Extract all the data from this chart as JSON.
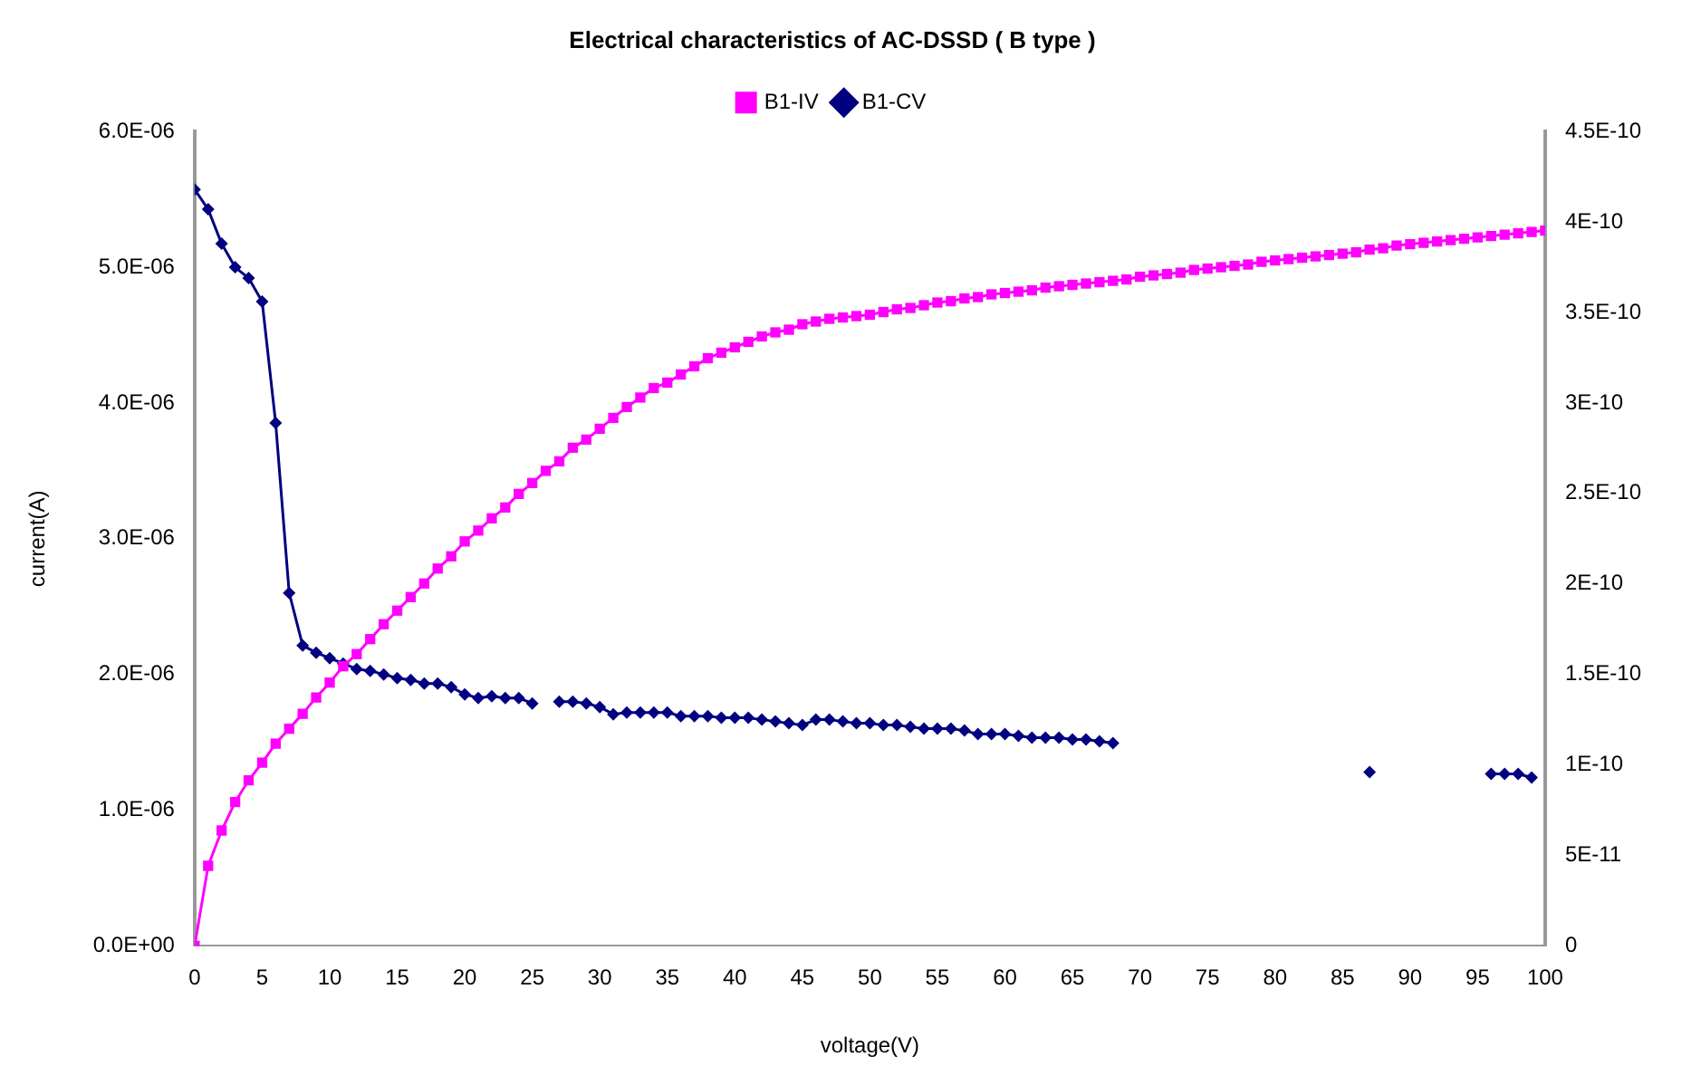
{
  "chart_data": {
    "type": "line",
    "title": "Electrical characteristics of AC-DSSD ( B type )",
    "xlabel": "voltage(V)",
    "ylabel": "current(A)",
    "x": [
      0,
      1,
      2,
      3,
      4,
      5,
      6,
      7,
      8,
      9,
      10,
      11,
      12,
      13,
      14,
      15,
      16,
      17,
      18,
      19,
      20,
      21,
      22,
      23,
      24,
      25,
      26,
      27,
      28,
      29,
      30,
      31,
      32,
      33,
      34,
      35,
      36,
      37,
      38,
      39,
      40,
      41,
      42,
      43,
      44,
      45,
      46,
      47,
      48,
      49,
      50,
      51,
      52,
      53,
      54,
      55,
      56,
      57,
      58,
      59,
      60,
      61,
      62,
      63,
      64,
      65,
      66,
      67,
      68,
      69,
      70,
      71,
      72,
      73,
      74,
      75,
      76,
      77,
      78,
      79,
      80,
      81,
      82,
      83,
      84,
      85,
      86,
      87,
      88,
      89,
      90,
      91,
      92,
      93,
      94,
      95,
      96,
      97,
      98,
      99,
      100
    ],
    "xlim": [
      0,
      100
    ],
    "xticks": [
      0,
      5,
      10,
      15,
      20,
      25,
      30,
      35,
      40,
      45,
      50,
      55,
      60,
      65,
      70,
      75,
      80,
      85,
      90,
      95,
      100
    ],
    "ylim": [
      0,
      6e-06
    ],
    "yticks": [
      {
        "value": 0,
        "label": "0.0E+00"
      },
      {
        "value": 1e-06,
        "label": "1.0E-06"
      },
      {
        "value": 2e-06,
        "label": "2.0E-06"
      },
      {
        "value": 3e-06,
        "label": "3.0E-06"
      },
      {
        "value": 4e-06,
        "label": "4.0E-06"
      },
      {
        "value": 5e-06,
        "label": "5.0E-06"
      },
      {
        "value": 6e-06,
        "label": "6.0E-06"
      }
    ],
    "y2lim": [
      0,
      4.5e-10
    ],
    "y2ticks": [
      0,
      {
        "value": 5e-11,
        "label": "5E-11"
      },
      {
        "value": 1e-10,
        "label": "1E-10"
      },
      {
        "value": 1.5e-10,
        "label": "1.5E-10"
      },
      {
        "value": 2e-10,
        "label": "2E-10"
      },
      {
        "value": 2.5e-10,
        "label": "2.5E-10"
      },
      {
        "value": 3e-10,
        "label": "3E-10"
      },
      {
        "value": 3.5e-10,
        "label": "3.5E-10"
      },
      {
        "value": 4e-10,
        "label": "4E-10"
      },
      {
        "value": 4.5e-10,
        "label": "4.5E-10"
      }
    ],
    "legend": "top",
    "grid": false,
    "line_style": "solid",
    "series": [
      {
        "name": "B1-IV",
        "color": "#ff00ff",
        "marker": "square",
        "values": [
          0,
          5.9e-07,
          8.5e-07,
          1.06e-06,
          1.22e-06,
          1.35e-06,
          1.49e-06,
          1.6e-06,
          1.71e-06,
          1.83e-06,
          1.94e-06,
          2.06e-06,
          2.15e-06,
          2.26e-06,
          2.37e-06,
          2.47e-06,
          2.57e-06,
          2.67e-06,
          2.78e-06,
          2.87e-06,
          2.98e-06,
          3.06e-06,
          3.15e-06,
          3.23e-06,
          3.33e-06,
          3.41e-06,
          3.5e-06,
          3.57e-06,
          3.67e-06,
          3.73e-06,
          3.81e-06,
          3.89e-06,
          3.97e-06,
          4.04e-06,
          4.11e-06,
          4.15e-06,
          4.21e-06,
          4.27e-06,
          4.33e-06,
          4.37e-06,
          4.41e-06,
          4.45e-06,
          4.49e-06,
          4.52e-06,
          4.54e-06,
          4.58e-06,
          4.6e-06,
          4.62e-06,
          4.63e-06,
          4.64e-06,
          4.65e-06,
          4.67e-06,
          4.69e-06,
          4.7e-06,
          4.72e-06,
          4.74e-06,
          4.75e-06,
          4.77e-06,
          4.78e-06,
          4.8e-06,
          4.81e-06,
          4.82e-06,
          4.83e-06,
          4.85e-06,
          4.86e-06,
          4.87e-06,
          4.88e-06,
          4.89e-06,
          4.9e-06,
          4.91e-06,
          4.93e-06,
          4.94e-06,
          4.95e-06,
          4.96e-06,
          4.98e-06,
          4.99e-06,
          5e-06,
          5.01e-06,
          5.02e-06,
          5.04e-06,
          5.05e-06,
          5.06e-06,
          5.07e-06,
          5.08e-06,
          5.09e-06,
          5.1e-06,
          5.11e-06,
          5.13e-06,
          5.14e-06,
          5.16e-06,
          5.17e-06,
          5.18e-06,
          5.19e-06,
          5.2e-06,
          5.21e-06,
          5.22e-06,
          5.23e-06,
          5.24e-06,
          5.25e-06,
          5.26e-06,
          5.27e-06
        ]
      },
      {
        "name": "B1-CV",
        "color": "#000080",
        "marker": "diamond",
        "axis": "y2",
        "values": [
          4.18e-10,
          4.07e-10,
          3.88e-10,
          3.75e-10,
          3.69e-10,
          3.56e-10,
          2.89e-10,
          1.95e-10,
          1.66e-10,
          1.62e-10,
          1.59e-10,
          1.56e-10,
          1.53e-10,
          1.52e-10,
          1.5e-10,
          1.48e-10,
          1.47e-10,
          1.45e-10,
          1.45e-10,
          1.43e-10,
          1.39e-10,
          1.37e-10,
          1.38e-10,
          1.37e-10,
          1.37e-10,
          1.34e-10,
          null,
          1.35e-10,
          1.35e-10,
          1.34e-10,
          1.32e-10,
          1.28e-10,
          1.29e-10,
          1.29e-10,
          1.29e-10,
          1.29e-10,
          1.27e-10,
          1.27e-10,
          1.27e-10,
          1.26e-10,
          1.26e-10,
          1.26e-10,
          1.25e-10,
          1.24e-10,
          1.23e-10,
          1.22e-10,
          1.25e-10,
          1.25e-10,
          1.24e-10,
          1.23e-10,
          1.23e-10,
          1.22e-10,
          1.22e-10,
          1.21e-10,
          1.2e-10,
          1.2e-10,
          1.2e-10,
          1.19e-10,
          1.17e-10,
          1.17e-10,
          1.17e-10,
          1.16e-10,
          1.15e-10,
          1.15e-10,
          1.15e-10,
          1.14e-10,
          1.14e-10,
          1.13e-10,
          1.12e-10,
          null,
          null,
          null,
          null,
          null,
          null,
          null,
          null,
          null,
          null,
          null,
          null,
          null,
          null,
          null,
          null,
          null,
          null,
          9.6e-11,
          null,
          null,
          null,
          null,
          null,
          null,
          null,
          null,
          9.5e-11,
          9.5e-11,
          9.5e-11,
          9.3e-11,
          null
        ]
      }
    ]
  }
}
